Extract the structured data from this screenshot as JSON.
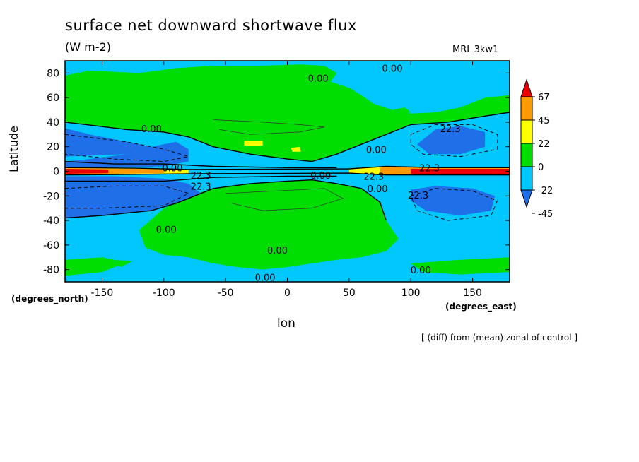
{
  "chart_data": {
    "type": "heatmap",
    "title": "surface net downward shortwave flux",
    "units": "(W m-2)",
    "model": "MRI_3kw1",
    "xlabel": "lon",
    "ylabel": "Latitude",
    "x_units_label": "(degrees_east)",
    "y_units_label": "(degrees_north)",
    "footnote": "[ (diff) from (mean) zonal of control ]",
    "xlim": [
      -180,
      180
    ],
    "ylim": [
      -90,
      90
    ],
    "x_ticks": [
      -150,
      -100,
      -50,
      0,
      50,
      100,
      150
    ],
    "y_ticks": [
      -80,
      -60,
      -40,
      -20,
      0,
      20,
      40,
      60,
      80
    ],
    "x_tick_labels": [
      "-150",
      "-100",
      "-50",
      "0",
      "50",
      "100",
      "150"
    ],
    "y_tick_labels": [
      "-80",
      "-60",
      "-40",
      "-20",
      "0",
      "20",
      "40",
      "60",
      "80"
    ],
    "colorbar": {
      "levels": [
        -45,
        -22,
        0,
        22,
        45,
        67
      ],
      "labels": [
        "67",
        "45",
        "22",
        "0",
        "-22",
        "-45"
      ],
      "colors": [
        "#1f6fe8",
        "#00c8ff",
        "#00dd00",
        "#ffff00",
        "#ff9900",
        "#ee0000"
      ]
    },
    "contour_labels": [
      {
        "text": "0.00",
        "lon": 25,
        "lat": 75
      },
      {
        "text": "0.00",
        "lon": 85,
        "lat": 83
      },
      {
        "text": "0.00",
        "lon": -110,
        "lat": 34
      },
      {
        "text": "0.00",
        "lon": 72,
        "lat": 17
      },
      {
        "text": "0.00",
        "lon": 27,
        "lat": -4
      },
      {
        "text": "0.00",
        "lon": 73,
        "lat": -15
      },
      {
        "text": "0.00",
        "lon": -98,
        "lat": -48
      },
      {
        "text": "0.00",
        "lon": -8,
        "lat": -65
      },
      {
        "text": "0.00",
        "lon": 108,
        "lat": -81
      },
      {
        "text": "0.00",
        "lon": -18,
        "lat": -87
      },
      {
        "text": "0.00",
        "lon": -93,
        "lat": 2
      },
      {
        "text": "22.3",
        "lon": 132,
        "lat": 34
      },
      {
        "text": "22.3",
        "lon": -70,
        "lat": -4
      },
      {
        "text": "22.3",
        "lon": -70,
        "lat": -13
      },
      {
        "text": "22.3",
        "lon": 70,
        "lat": -5
      },
      {
        "text": "22.3",
        "lon": 106,
        "lat": -20
      },
      {
        "text": "22.3",
        "lon": 115,
        "lat": 2
      }
    ],
    "regions": [
      {
        "level": 0,
        "desc": "green, northern mid-latitudes",
        "lon_range": [
          -180,
          180
        ],
        "lat_range": [
          30,
          80
        ]
      },
      {
        "level": 0,
        "desc": "green, southern mid-latitudes",
        "lon_range": [
          -120,
          90
        ],
        "lat_range": [
          -75,
          -5
        ]
      },
      {
        "level": -22,
        "desc": "cyan, southern high latitudes",
        "lon_range": [
          -180,
          180
        ],
        "lat_range": [
          -90,
          -55
        ]
      },
      {
        "level": -22,
        "desc": "cyan, northern Pacific",
        "lon_range": [
          60,
          180
        ],
        "lat_range": [
          30,
          85
        ]
      },
      {
        "level": -45,
        "desc": "blue, north-west Pacific",
        "lon_range": [
          100,
          160
        ],
        "lat_range": [
          12,
          40
        ]
      },
      {
        "level": -45,
        "desc": "blue, south-west Pacific",
        "lon_range": [
          100,
          170
        ],
        "lat_range": [
          -38,
          -12
        ]
      },
      {
        "level": -45,
        "desc": "blue, eastern Pacific north",
        "lon_range": [
          -180,
          -80
        ],
        "lat_range": [
          5,
          40
        ]
      },
      {
        "level": -45,
        "desc": "blue, eastern Pacific south",
        "lon_range": [
          -180,
          -70
        ],
        "lat_range": [
          -38,
          -5
        ]
      },
      {
        "level": 67,
        "desc": "red, equatorial east Pacific",
        "lon_range": [
          -180,
          -140
        ],
        "lat_range": [
          -2,
          2
        ]
      },
      {
        "level": 67,
        "desc": "red, equatorial west Pacific",
        "lon_range": [
          100,
          180
        ],
        "lat_range": [
          -2,
          2
        ]
      },
      {
        "level": 45,
        "desc": "orange, equatorial Indian Ocean",
        "lon_range": [
          70,
          100
        ],
        "lat_range": [
          -3,
          3
        ]
      },
      {
        "level": 22,
        "desc": "yellow, equatorial",
        "lon_range": [
          50,
          80
        ],
        "lat_range": [
          -3,
          3
        ]
      }
    ]
  }
}
